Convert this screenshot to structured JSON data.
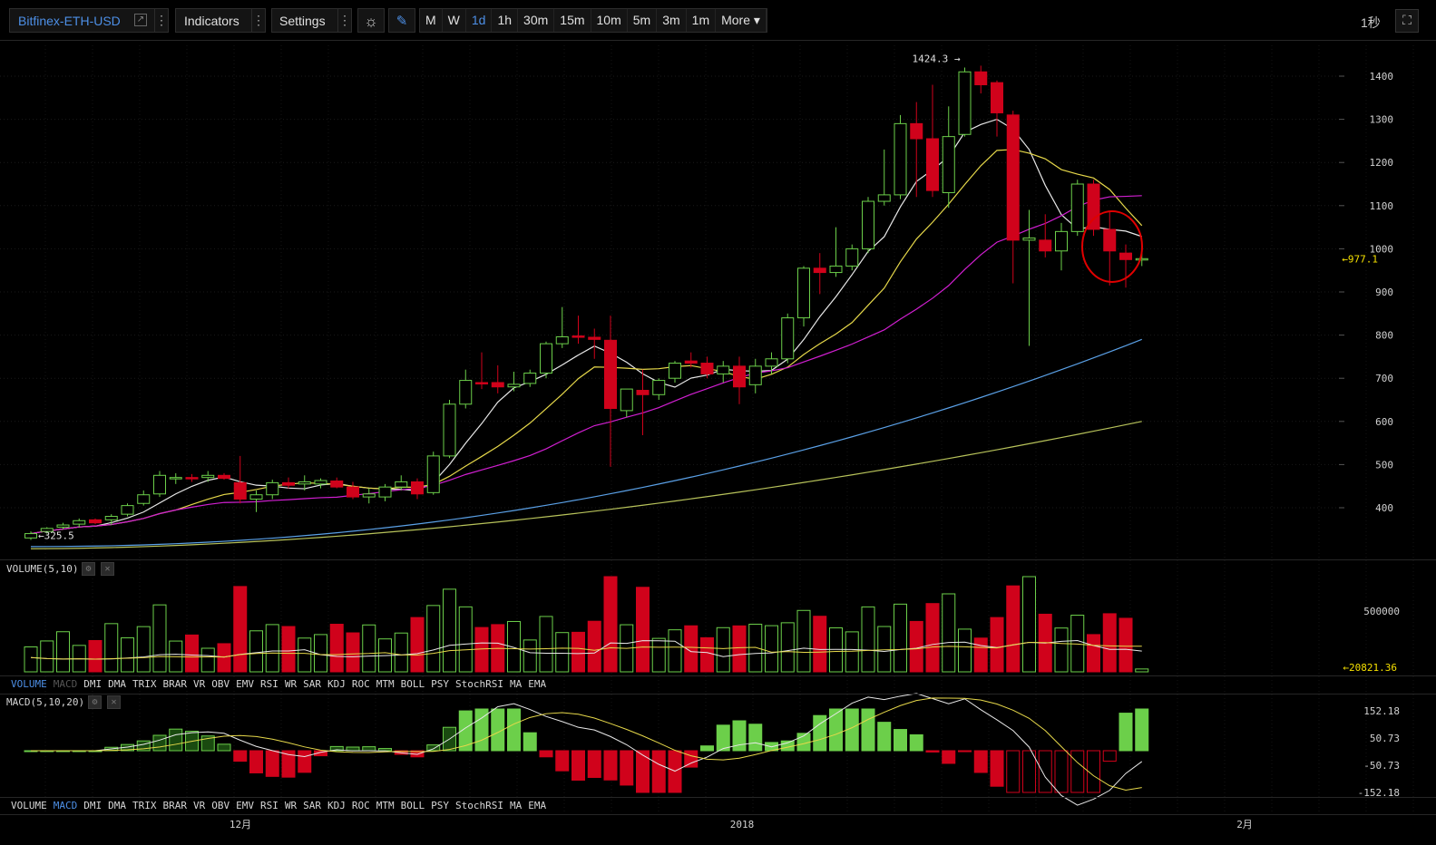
{
  "toolbar": {
    "symbol": "Bitfinex-ETH-USD",
    "indicators_label": "Indicators",
    "settings_label": "Settings",
    "periods": [
      "M",
      "W",
      "1d",
      "1h",
      "30m",
      "15m",
      "10m",
      "5m",
      "3m",
      "1m",
      "More"
    ],
    "active_period": "1d",
    "time_label": "1秒"
  },
  "colors": {
    "up": "#6ccf4a",
    "down": "#d0021b",
    "ma5": "#e8e8e8",
    "ma10": "#e6d84a",
    "ma20": "#d11fd1",
    "ma60": "#5aa0e6",
    "ma120": "#b7c25a",
    "accent": "#4d8fe6",
    "price_marker": "#f5e000"
  },
  "price_panel": {
    "high_marker": "1424.3",
    "low_marker": "325.5",
    "last_price": "977.1"
  },
  "volume_panel": {
    "label": "VOLUME(5,10)",
    "axis_label": "500000",
    "last_value": "20821.36"
  },
  "macd_panel": {
    "label": "MACD(5,10,20)",
    "axis_labels": [
      "152.18",
      "50.73",
      "-50.73",
      "-152.18"
    ]
  },
  "indicator_tabs": [
    "VOLUME",
    "MACD",
    "DMI",
    "DMA",
    "TRIX",
    "BRAR",
    "VR",
    "OBV",
    "EMV",
    "RSI",
    "WR",
    "SAR",
    "KDJ",
    "ROC",
    "MTM",
    "BOLL",
    "PSY",
    "StochRSI",
    "MA",
    "EMA"
  ],
  "x_axis_labels": [
    "12月",
    "2018",
    "2月"
  ],
  "chart_data": {
    "type": "candlestick",
    "interval": "1d",
    "y_ticks": [
      400,
      500,
      600,
      700,
      800,
      900,
      1000,
      1100,
      1200,
      1300,
      1400
    ],
    "ylim": [
      300,
      1450
    ],
    "candles": [
      {
        "o": 330,
        "h": 345,
        "l": 325.5,
        "c": 340
      },
      {
        "o": 345,
        "h": 355,
        "l": 340,
        "c": 352
      },
      {
        "o": 355,
        "h": 365,
        "l": 350,
        "c": 360
      },
      {
        "o": 362,
        "h": 375,
        "l": 355,
        "c": 370
      },
      {
        "o": 372,
        "h": 375,
        "l": 362,
        "c": 365
      },
      {
        "o": 372,
        "h": 385,
        "l": 360,
        "c": 380
      },
      {
        "o": 385,
        "h": 410,
        "l": 380,
        "c": 405
      },
      {
        "o": 410,
        "h": 440,
        "l": 405,
        "c": 430
      },
      {
        "o": 432,
        "h": 485,
        "l": 425,
        "c": 475
      },
      {
        "o": 468,
        "h": 480,
        "l": 455,
        "c": 470
      },
      {
        "o": 470,
        "h": 478,
        "l": 460,
        "c": 468
      },
      {
        "o": 470,
        "h": 485,
        "l": 460,
        "c": 475
      },
      {
        "o": 475,
        "h": 480,
        "l": 465,
        "c": 468
      },
      {
        "o": 458,
        "h": 520,
        "l": 410,
        "c": 420
      },
      {
        "o": 420,
        "h": 440,
        "l": 390,
        "c": 430
      },
      {
        "o": 430,
        "h": 465,
        "l": 420,
        "c": 458
      },
      {
        "o": 458,
        "h": 470,
        "l": 445,
        "c": 452
      },
      {
        "o": 455,
        "h": 475,
        "l": 440,
        "c": 460
      },
      {
        "o": 455,
        "h": 468,
        "l": 445,
        "c": 463
      },
      {
        "o": 462,
        "h": 470,
        "l": 445,
        "c": 448
      },
      {
        "o": 448,
        "h": 460,
        "l": 420,
        "c": 425
      },
      {
        "o": 425,
        "h": 445,
        "l": 410,
        "c": 432
      },
      {
        "o": 425,
        "h": 455,
        "l": 415,
        "c": 448
      },
      {
        "o": 448,
        "h": 475,
        "l": 440,
        "c": 460
      },
      {
        "o": 460,
        "h": 468,
        "l": 420,
        "c": 432
      },
      {
        "o": 435,
        "h": 530,
        "l": 430,
        "c": 520
      },
      {
        "o": 520,
        "h": 650,
        "l": 515,
        "c": 640
      },
      {
        "o": 640,
        "h": 720,
        "l": 630,
        "c": 695
      },
      {
        "o": 690,
        "h": 760,
        "l": 675,
        "c": 688
      },
      {
        "o": 690,
        "h": 730,
        "l": 665,
        "c": 680
      },
      {
        "o": 680,
        "h": 715,
        "l": 670,
        "c": 686
      },
      {
        "o": 688,
        "h": 720,
        "l": 680,
        "c": 712
      },
      {
        "o": 712,
        "h": 785,
        "l": 700,
        "c": 780
      },
      {
        "o": 780,
        "h": 865,
        "l": 770,
        "c": 796
      },
      {
        "o": 798,
        "h": 845,
        "l": 780,
        "c": 795
      },
      {
        "o": 795,
        "h": 815,
        "l": 745,
        "c": 790
      },
      {
        "o": 788,
        "h": 845,
        "l": 495,
        "c": 630
      },
      {
        "o": 625,
        "h": 675,
        "l": 610,
        "c": 675
      },
      {
        "o": 672,
        "h": 720,
        "l": 568,
        "c": 662
      },
      {
        "o": 662,
        "h": 700,
        "l": 650,
        "c": 695
      },
      {
        "o": 700,
        "h": 740,
        "l": 690,
        "c": 735
      },
      {
        "o": 740,
        "h": 760,
        "l": 725,
        "c": 735
      },
      {
        "o": 735,
        "h": 750,
        "l": 700,
        "c": 710
      },
      {
        "o": 710,
        "h": 740,
        "l": 690,
        "c": 728
      },
      {
        "o": 728,
        "h": 750,
        "l": 640,
        "c": 680
      },
      {
        "o": 685,
        "h": 745,
        "l": 665,
        "c": 728
      },
      {
        "o": 728,
        "h": 760,
        "l": 710,
        "c": 745
      },
      {
        "o": 745,
        "h": 850,
        "l": 735,
        "c": 840
      },
      {
        "o": 840,
        "h": 960,
        "l": 820,
        "c": 955
      },
      {
        "o": 955,
        "h": 990,
        "l": 895,
        "c": 945
      },
      {
        "o": 945,
        "h": 1050,
        "l": 935,
        "c": 960
      },
      {
        "o": 960,
        "h": 1010,
        "l": 950,
        "c": 1000
      },
      {
        "o": 1000,
        "h": 1120,
        "l": 990,
        "c": 1110
      },
      {
        "o": 1110,
        "h": 1230,
        "l": 1100,
        "c": 1125
      },
      {
        "o": 1125,
        "h": 1310,
        "l": 1115,
        "c": 1290
      },
      {
        "o": 1290,
        "h": 1340,
        "l": 1120,
        "c": 1255
      },
      {
        "o": 1255,
        "h": 1380,
        "l": 1120,
        "c": 1135
      },
      {
        "o": 1130,
        "h": 1330,
        "l": 1095,
        "c": 1260
      },
      {
        "o": 1265,
        "h": 1420,
        "l": 1260,
        "c": 1410
      },
      {
        "o": 1410,
        "h": 1424.3,
        "l": 1360,
        "c": 1380
      },
      {
        "o": 1385,
        "h": 1390,
        "l": 1260,
        "c": 1315
      },
      {
        "o": 1310,
        "h": 1320,
        "l": 920,
        "c": 1020
      },
      {
        "o": 1020,
        "h": 1090,
        "l": 775,
        "c": 1025
      },
      {
        "o": 1020,
        "h": 1080,
        "l": 980,
        "c": 995
      },
      {
        "o": 995,
        "h": 1060,
        "l": 950,
        "c": 1040
      },
      {
        "o": 1040,
        "h": 1160,
        "l": 1030,
        "c": 1150
      },
      {
        "o": 1150,
        "h": 1160,
        "l": 1030,
        "c": 1045
      },
      {
        "o": 1045,
        "h": 1085,
        "l": 915,
        "c": 995
      },
      {
        "o": 990,
        "h": 1010,
        "l": 910,
        "c": 975
      },
      {
        "o": 977.1,
        "h": 1000,
        "l": 960,
        "c": 977.1
      }
    ],
    "ma_lines": [
      "MA5",
      "MA10",
      "MA20",
      "MA60",
      "MA120"
    ]
  }
}
